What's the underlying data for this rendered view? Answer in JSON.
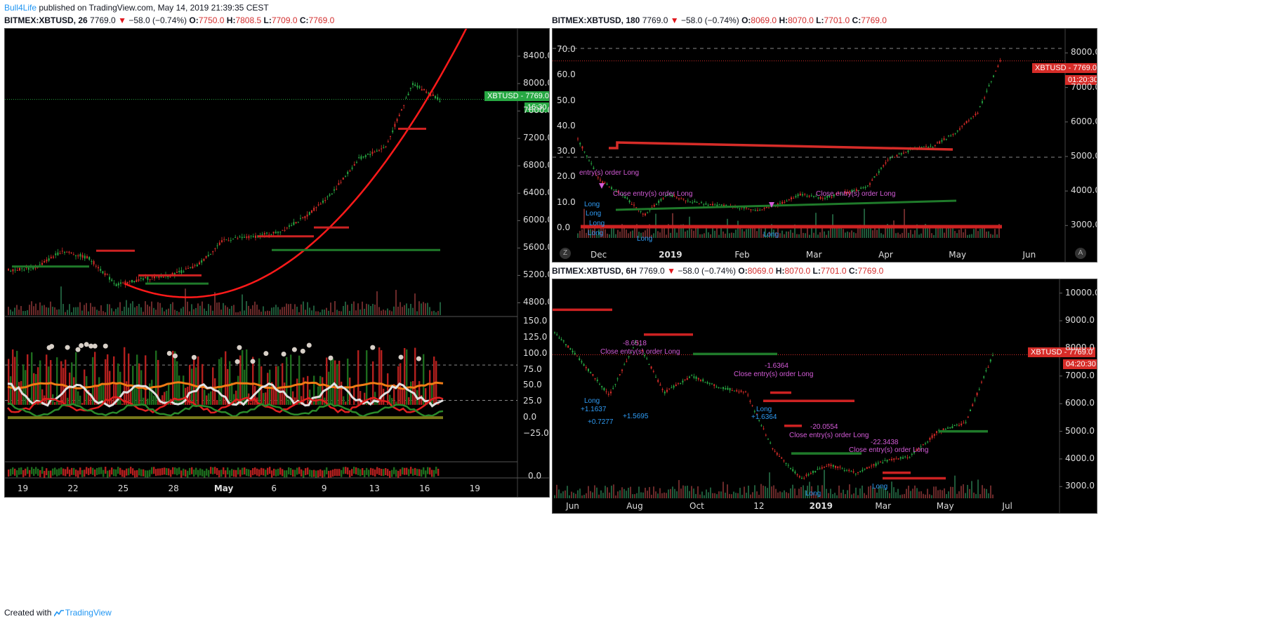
{
  "publisher": {
    "author": "Bull4Life",
    "text": "published on TradingView.com, May 14, 2019 21:39:35 CEST"
  },
  "footer": {
    "prefix": "Created with",
    "brand": "TradingView"
  },
  "colors": {
    "up": "#27a843",
    "down": "#d62c28",
    "curve": "#ff1a1a",
    "magenta": "#d45bd8",
    "blue": "#2f9bf4",
    "orange": "#f07b15",
    "white": "#e0e0e0"
  },
  "chart_data": [
    {
      "id": "left",
      "type": "line",
      "header": {
        "symbol": "BITMEX:XBTUSD, 26",
        "last": "7769.0",
        "change": "−58.0 (−0.74%)",
        "o": "7750.0",
        "h": "7808.5",
        "l": "7709.0",
        "c": "7769.0"
      },
      "price_tag": {
        "label": "XBTUSD",
        "value": "7769.0",
        "timer": "16:30"
      },
      "y_ticks": [
        "8400.0",
        "8000.0",
        "7600.0",
        "7200.0",
        "6800.0",
        "6400.0",
        "6000.0",
        "5600.0",
        "5200.0",
        "4800.0"
      ],
      "ylim": [
        4600,
        8800
      ],
      "osc_ticks": [
        "150.0",
        "125.0",
        "100.0",
        "75.0",
        "50.0",
        "25.0",
        "0.0",
        "−25.0"
      ],
      "bottom_tick": "0.0",
      "x_ticks": [
        "19",
        "22",
        "25",
        "28",
        "May",
        "6",
        "9",
        "13",
        "16",
        "19"
      ],
      "x_bold": [
        "May"
      ],
      "series": [
        {
          "name": "XBTUSD",
          "x": [
            "Apr 19",
            "Apr 21",
            "Apr 23",
            "Apr 25",
            "Apr 26",
            "Apr 27",
            "Apr 29",
            "May 1",
            "May 3",
            "May 5",
            "May 7",
            "May 9",
            "May 10",
            "May 11",
            "May 12",
            "May 13",
            "May 14"
          ],
          "values": [
            5280,
            5310,
            5560,
            5450,
            5060,
            5150,
            5200,
            5340,
            5720,
            5760,
            5830,
            6050,
            6400,
            6900,
            7080,
            8000,
            7769
          ]
        }
      ]
    },
    {
      "id": "top-right",
      "type": "line",
      "header": {
        "symbol": "BITMEX:XBTUSD, 180",
        "last": "7769.0",
        "change": "−58.0 (−0.74%)",
        "o": "8069.0",
        "h": "8070.0",
        "l": "7701.0",
        "c": "7769.0"
      },
      "price_tag": {
        "label": "XBTUSD",
        "value": "7769.0",
        "timer": "01:20:30"
      },
      "y_ticks": [
        "8000.0",
        "7000.0",
        "6000.0",
        "5000.0",
        "4000.0",
        "3000.0"
      ],
      "left_ticks": [
        "70.0",
        "60.0",
        "50.0",
        "40.0",
        "30.0",
        "20.0",
        "10.0",
        "0.0"
      ],
      "ylim": [
        2600,
        8700
      ],
      "x_ticks": [
        "Dec",
        "2019",
        "Feb",
        "Mar",
        "Apr",
        "May",
        "Jun"
      ],
      "x_bold": [
        "2019"
      ],
      "corner_left": "Z",
      "corner_right": "A",
      "annotations": [
        "entry(s) order Long",
        "Close entry(s) order Long",
        "Close entry(s) order Long",
        "Long",
        "Long",
        "Long",
        "Long",
        "Long",
        "Long"
      ],
      "series": [
        {
          "name": "XBTUSD",
          "x": [
            "Nov 15",
            "Nov 25",
            "Dec 1",
            "Dec 10",
            "Dec 20",
            "Dec 31",
            "Jan 10",
            "Jan 20",
            "Feb 1",
            "Feb 8",
            "Feb 20",
            "Mar 1",
            "Mar 15",
            "Apr 1",
            "Apr 2",
            "Apr 10",
            "Apr 25",
            "May 5",
            "May 10",
            "May 14"
          ],
          "values": [
            5500,
            4300,
            3900,
            3300,
            3900,
            3700,
            3600,
            3550,
            3450,
            3600,
            3900,
            3800,
            3950,
            4100,
            4950,
            5200,
            5300,
            5700,
            6300,
            7769
          ]
        }
      ]
    },
    {
      "id": "bottom-right",
      "type": "line",
      "header": {
        "symbol": "BITMEX:XBTUSD, 6H",
        "last": "7769.0",
        "change": "−58.0 (−0.74%)",
        "o": "8069.0",
        "h": "8070.0",
        "l": "7701.0",
        "c": "7769.0"
      },
      "price_tag": {
        "label": "XBTUSD",
        "value": "7769.0",
        "timer": "04:20:30"
      },
      "y_ticks": [
        "10000.0",
        "9000.0",
        "8000.0",
        "7000.0",
        "6000.0",
        "5000.0",
        "4000.0",
        "3000.0"
      ],
      "ylim": [
        2500,
        10500
      ],
      "x_ticks": [
        "Jun",
        "Aug",
        "Oct",
        "12",
        "2019",
        "Mar",
        "May",
        "Jul"
      ],
      "x_bold": [
        "2019"
      ],
      "annotations": [
        "-8.6518",
        "Close entry(s) order Long",
        "-1.6364",
        "Close entry(s) order Long",
        "Long",
        "+1.6364",
        "-20.0554",
        "Close entry(s) order Long",
        "-22.3438",
        "Close entry(s) order Long",
        "Long",
        "+1.1637",
        "+0.7277",
        "+1.5695",
        "Long",
        "Long"
      ],
      "series": [
        {
          "name": "XBTUSD",
          "x": [
            "May 2018",
            "Jun",
            "Jul 1",
            "Jul 25",
            "Aug 10",
            "Sep 1",
            "Oct 1",
            "Nov 10",
            "Nov 25",
            "Dec 15",
            "Jan 2019",
            "Feb",
            "Mar",
            "Apr 1",
            "Apr 5",
            "May 1",
            "May 14"
          ],
          "values": [
            8600,
            7500,
            6300,
            8300,
            6400,
            7000,
            6600,
            6400,
            4300,
            3300,
            3800,
            3500,
            3900,
            4100,
            5000,
            5300,
            7769
          ]
        }
      ]
    }
  ]
}
